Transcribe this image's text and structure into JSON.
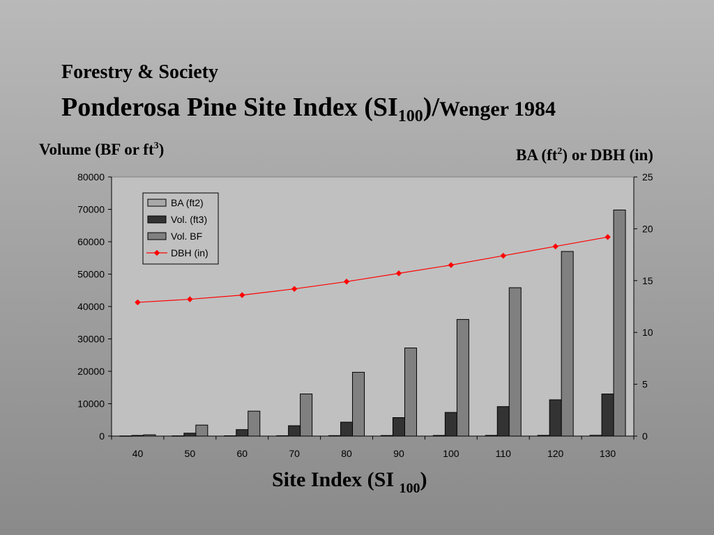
{
  "header": {
    "course": "Forestry & Society",
    "title_main": "Ponderosa Pine Site Index (SI",
    "title_sub": "100",
    "title_close": ")/",
    "title_tail": "Wenger 1984"
  },
  "axis_labels": {
    "left_pre": "Volume (BF or ft",
    "left_sup": "3",
    "left_post": ")",
    "right_a": "BA (ft",
    "right_sup": "2",
    "right_b": ") or DBH (in)",
    "x_pre": "Site Index (SI ",
    "x_sub": "100",
    "x_post": ")"
  },
  "chart_data": {
    "type": "bar",
    "categories": [
      "40",
      "50",
      "60",
      "70",
      "80",
      "90",
      "100",
      "110",
      "120",
      "130"
    ],
    "series": [
      {
        "name": "BA (ft2)",
        "axis": "left",
        "kind": "bar",
        "color": "#a9a9a9",
        "values": [
          50,
          80,
          100,
          120,
          150,
          180,
          200,
          220,
          230,
          250
        ]
      },
      {
        "name": "Vol. (ft3)",
        "axis": "left",
        "kind": "bar",
        "color": "#333333",
        "values": [
          200,
          900,
          2000,
          3200,
          4300,
          5700,
          7300,
          9100,
          11200,
          13000
        ]
      },
      {
        "name": "Vol. BF",
        "axis": "left",
        "kind": "bar",
        "color": "#808080",
        "values": [
          400,
          3400,
          7700,
          13000,
          19700,
          27200,
          36000,
          45800,
          57000,
          69800
        ]
      },
      {
        "name": "DBH (in)",
        "axis": "right",
        "kind": "line",
        "color": "#ff0000",
        "values": [
          12.9,
          13.2,
          13.6,
          14.2,
          14.9,
          15.7,
          16.5,
          17.4,
          18.3,
          19.2
        ]
      }
    ],
    "ylim_left": [
      0,
      80000
    ],
    "yticks_left": [
      "0",
      "10000",
      "20000",
      "30000",
      "40000",
      "50000",
      "60000",
      "70000",
      "80000"
    ],
    "ylim_right": [
      0,
      25
    ],
    "yticks_right": [
      "0",
      "5",
      "10",
      "15",
      "20",
      "25"
    ],
    "legend_position": "top-left",
    "grid": false
  }
}
